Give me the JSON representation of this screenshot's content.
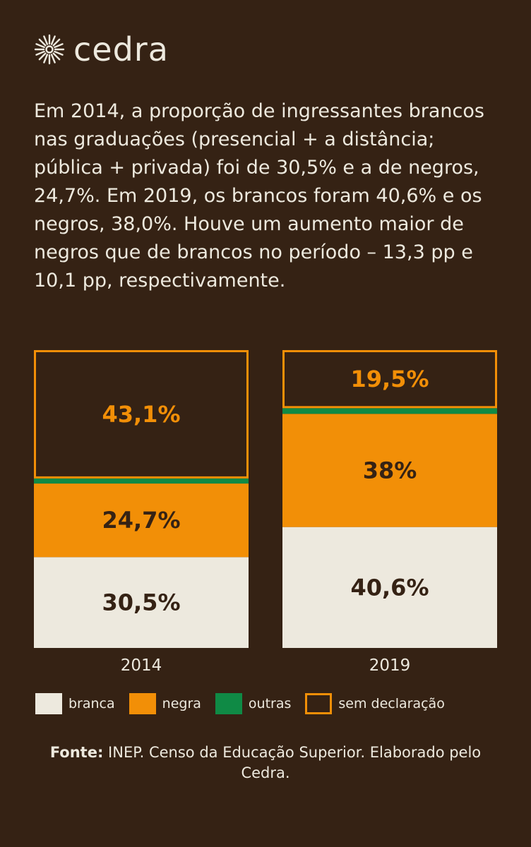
{
  "brand": {
    "name": "cedra",
    "logo_icon": "sunburst-icon"
  },
  "intro_text": "Em 2014, a proporção de ingressantes brancos nas graduações (presencial + a distância; pública + privada) foi de 30,5% e a de negros, 24,7%. Em 2019, os brancos foram 40,6% e os negros, 38,0%. Houve um aumento maior de negros que de brancos no período – 13,3 pp e 10,1 pp, respectivamente.",
  "colors": {
    "background": "#352214",
    "branca": "#ede9de",
    "negra": "#f28f07",
    "outras": "#0f8a45",
    "sem_declaracao": "#f28f07",
    "dark_text": "#352214"
  },
  "chart_data": {
    "type": "bar",
    "stacked": true,
    "categories": [
      "2014",
      "2019"
    ],
    "series": [
      {
        "name": "branca",
        "values": [
          30.5,
          40.6
        ],
        "labels": [
          "30,5%",
          "40,6%"
        ]
      },
      {
        "name": "negra",
        "values": [
          24.7,
          38.0
        ],
        "labels": [
          "24,7%",
          "38%"
        ]
      },
      {
        "name": "outras",
        "values": [
          1.7,
          1.9
        ],
        "labels": [
          "",
          ""
        ]
      },
      {
        "name": "sem declaração",
        "values": [
          43.1,
          19.5
        ],
        "labels": [
          "43,1%",
          "19,5%"
        ]
      }
    ],
    "ylim": [
      0,
      100
    ],
    "grid": false,
    "legend_position": "bottom"
  },
  "legend": [
    {
      "label": "branca",
      "key": "branca"
    },
    {
      "label": "negra",
      "key": "negra"
    },
    {
      "label": "outras",
      "key": "outras"
    },
    {
      "label": "sem declaração",
      "key": "sem_declaracao"
    }
  ],
  "source": {
    "prefix": "Fonte:",
    "text": " INEP. Censo da Educação Superior. Elaborado pelo Cedra."
  }
}
